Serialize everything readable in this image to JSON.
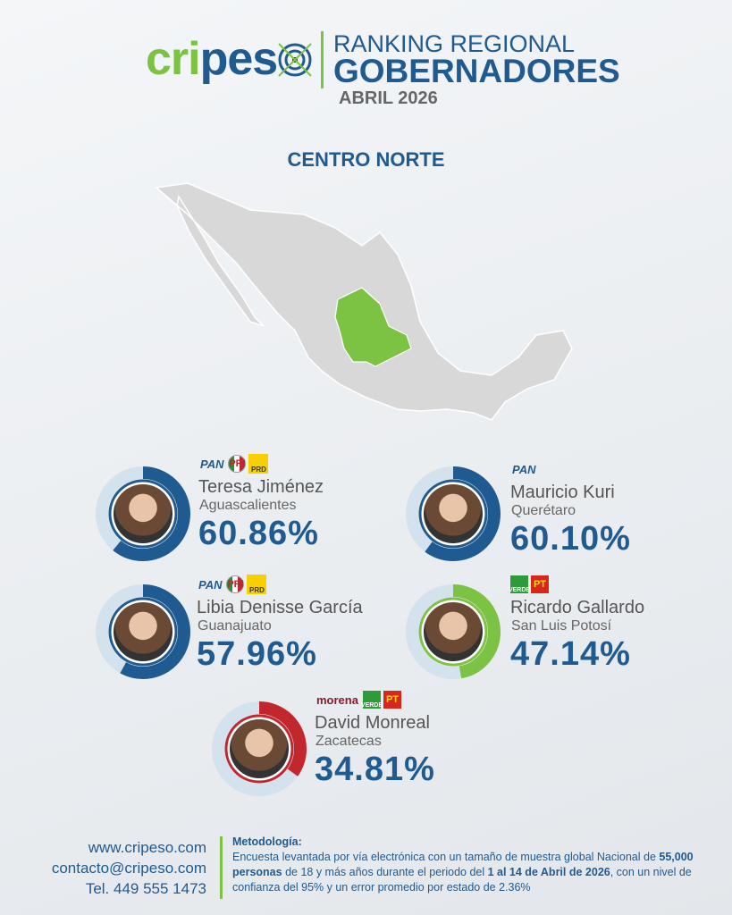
{
  "header": {
    "brand": "cripeso",
    "title_line1": "RANKING REGIONAL",
    "title_line2": "GOBERNADORES",
    "date": "ABRIL 2026"
  },
  "region": "CENTRO NORTE",
  "colors": {
    "brand_blue": "#1f5a91",
    "brand_green": "#7cc243",
    "ring_track": "#d3e2ec",
    "map_gray": "#d8d8d8",
    "map_highlight": "#7cc243"
  },
  "governors": [
    {
      "name": "Teresa Jiménez",
      "state": "Aguascalientes",
      "percent_label": "60.86%",
      "percent": 60.86,
      "parties": [
        "PAN",
        "PRI",
        "PRD"
      ],
      "ring_color": "#1f5a91"
    },
    {
      "name": "Mauricio Kuri",
      "state": "Querétaro",
      "percent_label": "60.10%",
      "percent": 60.1,
      "parties": [
        "PAN"
      ],
      "ring_color": "#1f5a91"
    },
    {
      "name": "Libia Denisse García",
      "state": "Guanajuato",
      "percent_label": "57.96%",
      "percent": 57.96,
      "parties": [
        "PAN",
        "PRI",
        "PRD"
      ],
      "ring_color": "#1f5a91"
    },
    {
      "name": "Ricardo Gallardo",
      "state": "San Luis Potosí",
      "percent_label": "47.14%",
      "percent": 47.14,
      "parties": [
        "VERDE",
        "PT"
      ],
      "ring_color": "#7cc243"
    },
    {
      "name": "David Monreal",
      "state": "Zacatecas",
      "percent_label": "34.81%",
      "percent": 34.81,
      "parties": [
        "morena",
        "VERDE",
        "PT"
      ],
      "ring_color": "#c1272d"
    }
  ],
  "footer": {
    "website": "www.cripeso.com",
    "email": "contacto@cripeso.com",
    "phone": "Tel. 449 555 1473",
    "methodology_title": "Metodología:",
    "m1": "Encuesta levantada por vía electrónica con un tamaño de muestra global Nacional de ",
    "m2_bold": "55,000 personas",
    "m3": " de 18 y más años durante el periodo del ",
    "m4_bold": "1 al 14 de Abril de 2026",
    "m5": ", con un nivel de confianza del 95% y un error promedio por estado de 2.36%"
  }
}
